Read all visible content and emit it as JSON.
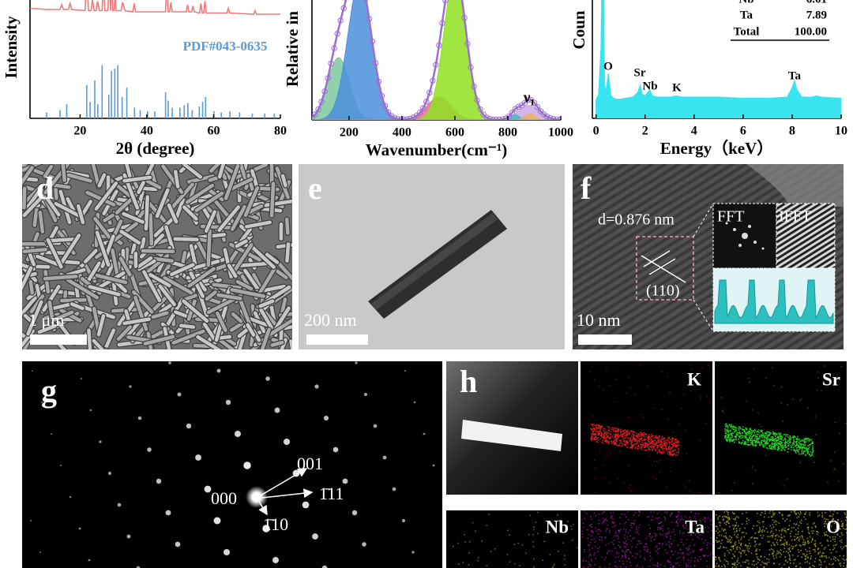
{
  "chart_data": [
    {
      "type": "line",
      "ylabel": "Intensity",
      "xlabel": "2θ (degree)",
      "xlim": [
        5,
        80
      ],
      "ylim": [
        0,
        100
      ],
      "xticks": [
        20,
        40,
        60,
        80
      ],
      "series": [
        {
          "color": "#f07878",
          "x": [
            5,
            10,
            14,
            14.5,
            15,
            16.5,
            17,
            17.5,
            21.5,
            22,
            22.5,
            23.3,
            23.7,
            24.2,
            24.8,
            25.2,
            25.8,
            26.6,
            27,
            27.4,
            28.3,
            28.7,
            29.1,
            29.5,
            29.8,
            30.2,
            30.5,
            30.8,
            31.5,
            32.3,
            32.7,
            33.5,
            35.8,
            36.2,
            36.6,
            45.6,
            46,
            46.4,
            46.8,
            47.2,
            47.6,
            51.8,
            52.2,
            52.6,
            53.4,
            53.8,
            54.2,
            55.8,
            56.2,
            56.6,
            57,
            57.4,
            57.8,
            64,
            64.4,
            64.8,
            72,
            72.4,
            72.8,
            80
          ],
          "values": [
            93,
            92,
            92,
            96,
            92,
            92,
            97,
            92,
            91,
            120,
            91,
            91,
            100,
            91,
            91,
            99,
            91,
            91,
            118,
            91,
            91,
            115,
            91,
            125,
            91,
            91,
            104,
            91,
            91,
            91,
            98,
            91,
            90,
            97,
            90,
            90,
            118,
            90,
            90,
            98,
            90,
            90,
            96,
            90,
            90,
            95,
            90,
            89,
            97,
            89,
            89,
            99,
            89,
            89,
            93,
            89,
            88,
            91,
            88,
            88
          ]
        },
        {
          "name": "PDF#043-0635",
          "color": "#5b9bd5",
          "style": "stick",
          "x": [
            10,
            14,
            16,
            22,
            23,
            24.4,
            25.3,
            26.6,
            28.6,
            29.4,
            30.4,
            31.3,
            32.6,
            34,
            36.3,
            38,
            40.2,
            42.4,
            45.6,
            46.4,
            47.6,
            49.9,
            51.2,
            52.3,
            53.6,
            55.7,
            56.7,
            57.6,
            60.1,
            62.3,
            64.9,
            67.8,
            71.6,
            75.3,
            78.2
          ],
          "values": [
            5,
            7,
            12,
            28,
            14,
            32,
            12,
            45,
            20,
            40,
            42,
            45,
            18,
            26,
            9,
            7,
            6,
            6,
            22,
            15,
            9,
            9,
            11,
            13,
            7,
            10,
            14,
            18,
            6,
            5,
            6,
            5,
            4,
            4,
            4
          ]
        }
      ]
    },
    {
      "type": "peakfit",
      "ylabel": "Relative in",
      "xlabel": "Wavenumber(cm⁻¹)",
      "annotation": "ν₁",
      "xlim": [
        60,
        1000
      ],
      "ylim": [
        0,
        100
      ],
      "xticks": [
        200,
        400,
        600,
        800,
        1000
      ],
      "fit_color": "#9b6fd0",
      "peaks": [
        {
          "center": 160,
          "height": 52,
          "width": 40,
          "color": "#7fc9a0"
        },
        {
          "center": 240,
          "height": 115,
          "width": 45,
          "color": "#4a8fdc"
        },
        {
          "center": 540,
          "height": 19,
          "width": 45,
          "color": "#e8708a"
        },
        {
          "center": 600,
          "height": 120,
          "width": 42,
          "color": "#8fe020"
        },
        {
          "center": 880,
          "height": 12,
          "width": 40,
          "color": "#c9a8e8"
        },
        {
          "center": 830,
          "height": 4,
          "width": 15,
          "color": "#40c0c0"
        },
        {
          "center": 885,
          "height": 5,
          "width": 20,
          "color": "#f0b060"
        }
      ]
    },
    {
      "type": "area",
      "ylabel": "Coun",
      "xlabel": "Energy（keV）",
      "xlim": [
        -0.15,
        10
      ],
      "ylim": [
        0,
        100
      ],
      "xticks": [
        0,
        2,
        4,
        6,
        8,
        10
      ],
      "color": "#38e4f0",
      "x": [
        0,
        0.1,
        0.2,
        0.25,
        0.3,
        0.35,
        0.4,
        0.45,
        0.5,
        0.55,
        0.6,
        0.7,
        0.9,
        1.2,
        1.5,
        1.7,
        1.8,
        1.9,
        2.0,
        2.1,
        2.2,
        2.3,
        2.5,
        3.0,
        3.3,
        3.5,
        4,
        5,
        6,
        7,
        7.8,
        8.0,
        8.1,
        8.2,
        8.4,
        8.8,
        9.0,
        9.2,
        10
      ],
      "values": [
        16,
        20,
        60,
        140,
        120,
        30,
        22,
        30,
        38,
        30,
        20,
        17,
        16,
        17,
        18,
        22,
        28,
        20,
        19,
        22,
        24,
        19,
        18,
        18,
        19,
        18,
        18,
        18,
        17,
        17,
        18,
        26,
        32,
        24,
        18,
        18,
        19,
        18,
        17
      ],
      "peak_labels": [
        "O",
        "Sr",
        "Nb",
        "K",
        "Ta"
      ],
      "table": {
        "rows": [
          [
            "Nb",
            "6.01"
          ],
          [
            "Ta",
            "7.89"
          ],
          [
            "Total",
            "100.00"
          ]
        ]
      }
    }
  ],
  "panels": {
    "d": {
      "letter": "d",
      "scale": "1 μm"
    },
    "e": {
      "letter": "e",
      "scale": "200 nm"
    },
    "f": {
      "letter": "f",
      "d_spacing": "d=0.876 nm",
      "plane": "(110)",
      "insets": [
        "FFT",
        "IFFT"
      ],
      "scale": "10 nm"
    },
    "g": {
      "letter": "g",
      "spots": [
        "000",
        "001",
        "1̄11",
        "1̄10"
      ]
    },
    "h": {
      "letter": "h",
      "maps": [
        "K",
        "Sr",
        "Nb",
        "Ta",
        "O"
      ]
    }
  }
}
